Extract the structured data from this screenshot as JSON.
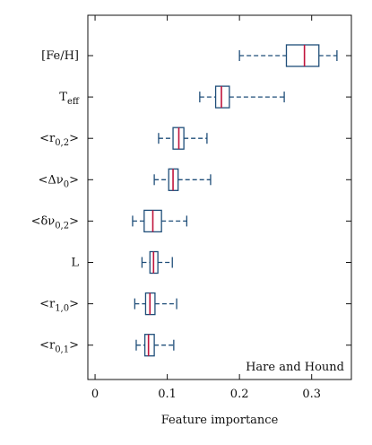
{
  "chart_data": {
    "type": "boxplot",
    "orientation": "horizontal",
    "xlabel": "Feature importance",
    "xlim": [
      -0.01,
      0.355
    ],
    "xticks": [
      0,
      0.1,
      0.2,
      0.3
    ],
    "xtick_labels": [
      "0",
      "0.1",
      "0.2",
      "0.3"
    ],
    "grid": false,
    "annotation": "Hare and Hound",
    "annotation_position": "bottom-right",
    "colors": {
      "box": "#1f4e79",
      "median": "#c0143c",
      "frame": "#111111"
    },
    "categories": [
      {
        "label": "[Fe/H]",
        "main": "[Fe/H]",
        "sub": ""
      },
      {
        "label": "T_eff",
        "main": "T",
        "sub": "eff"
      },
      {
        "label": "<r_0,2>",
        "main": "<r",
        "sub": "0,2",
        "tail": ">"
      },
      {
        "label": "<Δν_0>",
        "main": "<Δν",
        "sub": "0",
        "tail": ">"
      },
      {
        "label": "<δν_0,2>",
        "main": "<δν",
        "sub": "0,2",
        "tail": ">"
      },
      {
        "label": "L",
        "main": "L",
        "sub": ""
      },
      {
        "label": "<r_1,0>",
        "main": "<r",
        "sub": "1,0",
        "tail": ">"
      },
      {
        "label": "<r_0,1>",
        "main": "<r",
        "sub": "0,1",
        "tail": ">"
      }
    ],
    "boxes": [
      {
        "whisker_low": 0.2,
        "q1": 0.265,
        "median": 0.29,
        "q3": 0.31,
        "whisker_high": 0.335
      },
      {
        "whisker_low": 0.145,
        "q1": 0.167,
        "median": 0.175,
        "q3": 0.186,
        "whisker_high": 0.262
      },
      {
        "whisker_low": 0.088,
        "q1": 0.108,
        "median": 0.116,
        "q3": 0.123,
        "whisker_high": 0.155
      },
      {
        "whisker_low": 0.082,
        "q1": 0.102,
        "median": 0.108,
        "q3": 0.115,
        "whisker_high": 0.16
      },
      {
        "whisker_low": 0.052,
        "q1": 0.068,
        "median": 0.08,
        "q3": 0.092,
        "whisker_high": 0.127
      },
      {
        "whisker_low": 0.065,
        "q1": 0.076,
        "median": 0.081,
        "q3": 0.087,
        "whisker_high": 0.107
      },
      {
        "whisker_low": 0.055,
        "q1": 0.07,
        "median": 0.076,
        "q3": 0.083,
        "whisker_high": 0.113
      },
      {
        "whisker_low": 0.057,
        "q1": 0.069,
        "median": 0.074,
        "q3": 0.082,
        "whisker_high": 0.109
      }
    ]
  }
}
